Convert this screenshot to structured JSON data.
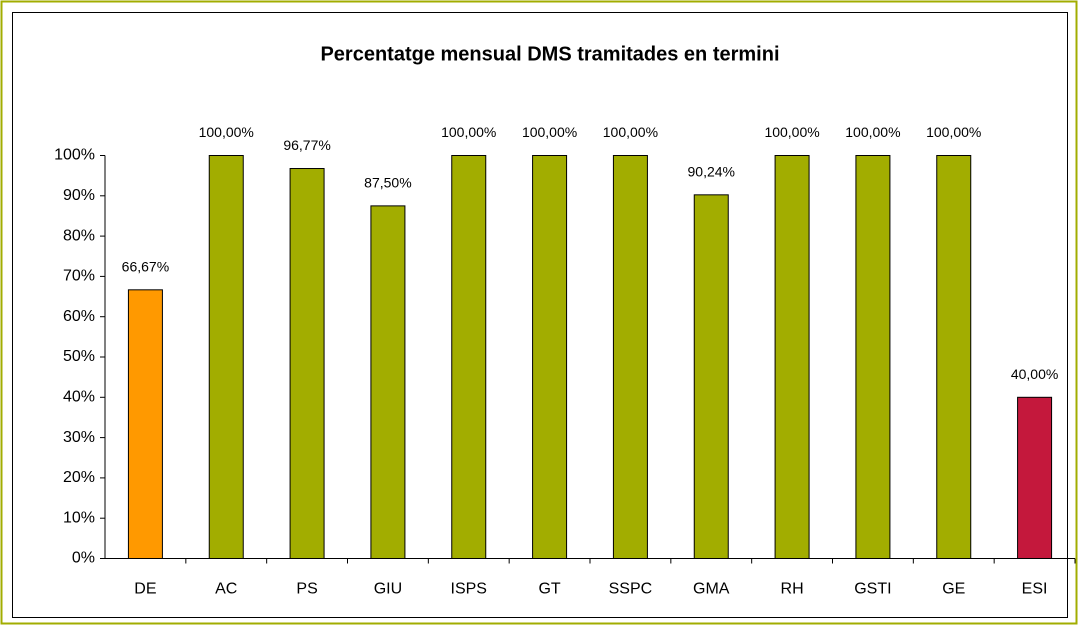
{
  "chart_data": {
    "type": "bar",
    "title": "Percentatge mensual DMS tramitades en termini",
    "categories": [
      "DE",
      "AC",
      "PS",
      "GIU",
      "ISPS",
      "GT",
      "SSPC",
      "GMA",
      "RH",
      "GSTI",
      "GE",
      "ESI"
    ],
    "values": [
      66.67,
      100,
      96.77,
      87.5,
      100,
      100,
      100,
      90.24,
      100,
      100,
      100,
      40
    ],
    "value_labels": [
      "66,67%",
      "100,00%",
      "96,77%",
      "87,50%",
      "100,00%",
      "100,00%",
      "100,00%",
      "90,24%",
      "100,00%",
      "100,00%",
      "100,00%",
      "40,00%"
    ],
    "colors": [
      "#ff9900",
      "#a2ad00",
      "#a2ad00",
      "#a2ad00",
      "#a2ad00",
      "#a2ad00",
      "#a2ad00",
      "#a2ad00",
      "#a2ad00",
      "#a2ad00",
      "#a2ad00",
      "#c4183c"
    ],
    "ylim": [
      0,
      100
    ],
    "yticks": [
      {
        "value": 0,
        "label": "0%"
      },
      {
        "value": 10,
        "label": "10%"
      },
      {
        "value": 20,
        "label": "20%"
      },
      {
        "value": 30,
        "label": "30%"
      },
      {
        "value": 40,
        "label": "40%"
      },
      {
        "value": 50,
        "label": "50%"
      },
      {
        "value": 60,
        "label": "60%"
      },
      {
        "value": 70,
        "label": "70%"
      },
      {
        "value": 80,
        "label": "80%"
      },
      {
        "value": 90,
        "label": "90%"
      },
      {
        "value": 100,
        "label": "100%"
      }
    ],
    "grid": false
  }
}
